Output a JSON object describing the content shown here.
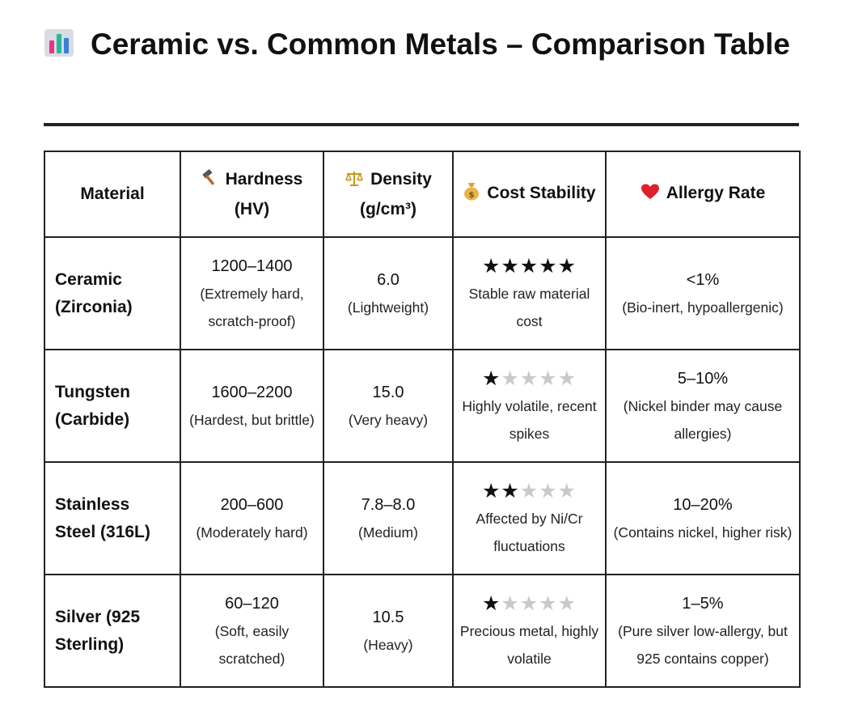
{
  "title": "Ceramic vs. Common Metals – Comparison Table",
  "title_icon": "bar-chart-icon",
  "columns": [
    {
      "icon": null,
      "label": "Material"
    },
    {
      "icon": "hammer-icon",
      "label": "Hardness (HV)"
    },
    {
      "icon": "balance-scale-icon",
      "label": "Density (g/cm³)"
    },
    {
      "icon": "money-bag-icon",
      "label": "Cost Stability"
    },
    {
      "icon": "red-heart-icon",
      "label": "Allergy Rate"
    }
  ],
  "rows": [
    {
      "material": "Ceramic (Zirconia)",
      "hardness_value": "1200–1400",
      "hardness_note": "(Extremely hard, scratch-proof)",
      "density_value": "6.0",
      "density_note": "(Lightweight)",
      "cost_stars": 5,
      "cost_note": "Stable raw material cost",
      "allergy_value": "<1%",
      "allergy_note": "(Bio-inert, hypoallergenic)"
    },
    {
      "material": "Tungsten (Carbide)",
      "hardness_value": "1600–2200",
      "hardness_note": "(Hardest, but brittle)",
      "density_value": "15.0",
      "density_note": "(Very heavy)",
      "cost_stars": 1,
      "cost_note": "Highly volatile, recent spikes",
      "allergy_value": "5–10%",
      "allergy_note": "(Nickel binder may cause allergies)"
    },
    {
      "material": "Stainless Steel (316L)",
      "hardness_value": "200–600",
      "hardness_note": "(Moderately hard)",
      "density_value": "7.8–8.0",
      "density_note": "(Medium)",
      "cost_stars": 2,
      "cost_note": "Affected by Ni/Cr fluctuations",
      "allergy_value": "10–20%",
      "allergy_note": "(Contains nickel, higher risk)"
    },
    {
      "material": "Silver (925 Sterling)",
      "hardness_value": "60–120",
      "hardness_note": "(Soft, easily scratched)",
      "density_value": "10.5",
      "density_note": "(Heavy)",
      "cost_stars": 1,
      "cost_note": "Precious metal, highly volatile",
      "allergy_value": "1–5%",
      "allergy_note": "(Pure silver low-allergy, but 925 contains copper)"
    }
  ],
  "star_max": 5,
  "colors": {
    "star_on": "#111111",
    "star_off": "#c9c9c9",
    "heart": "#e0202a",
    "rule": "#222222"
  }
}
